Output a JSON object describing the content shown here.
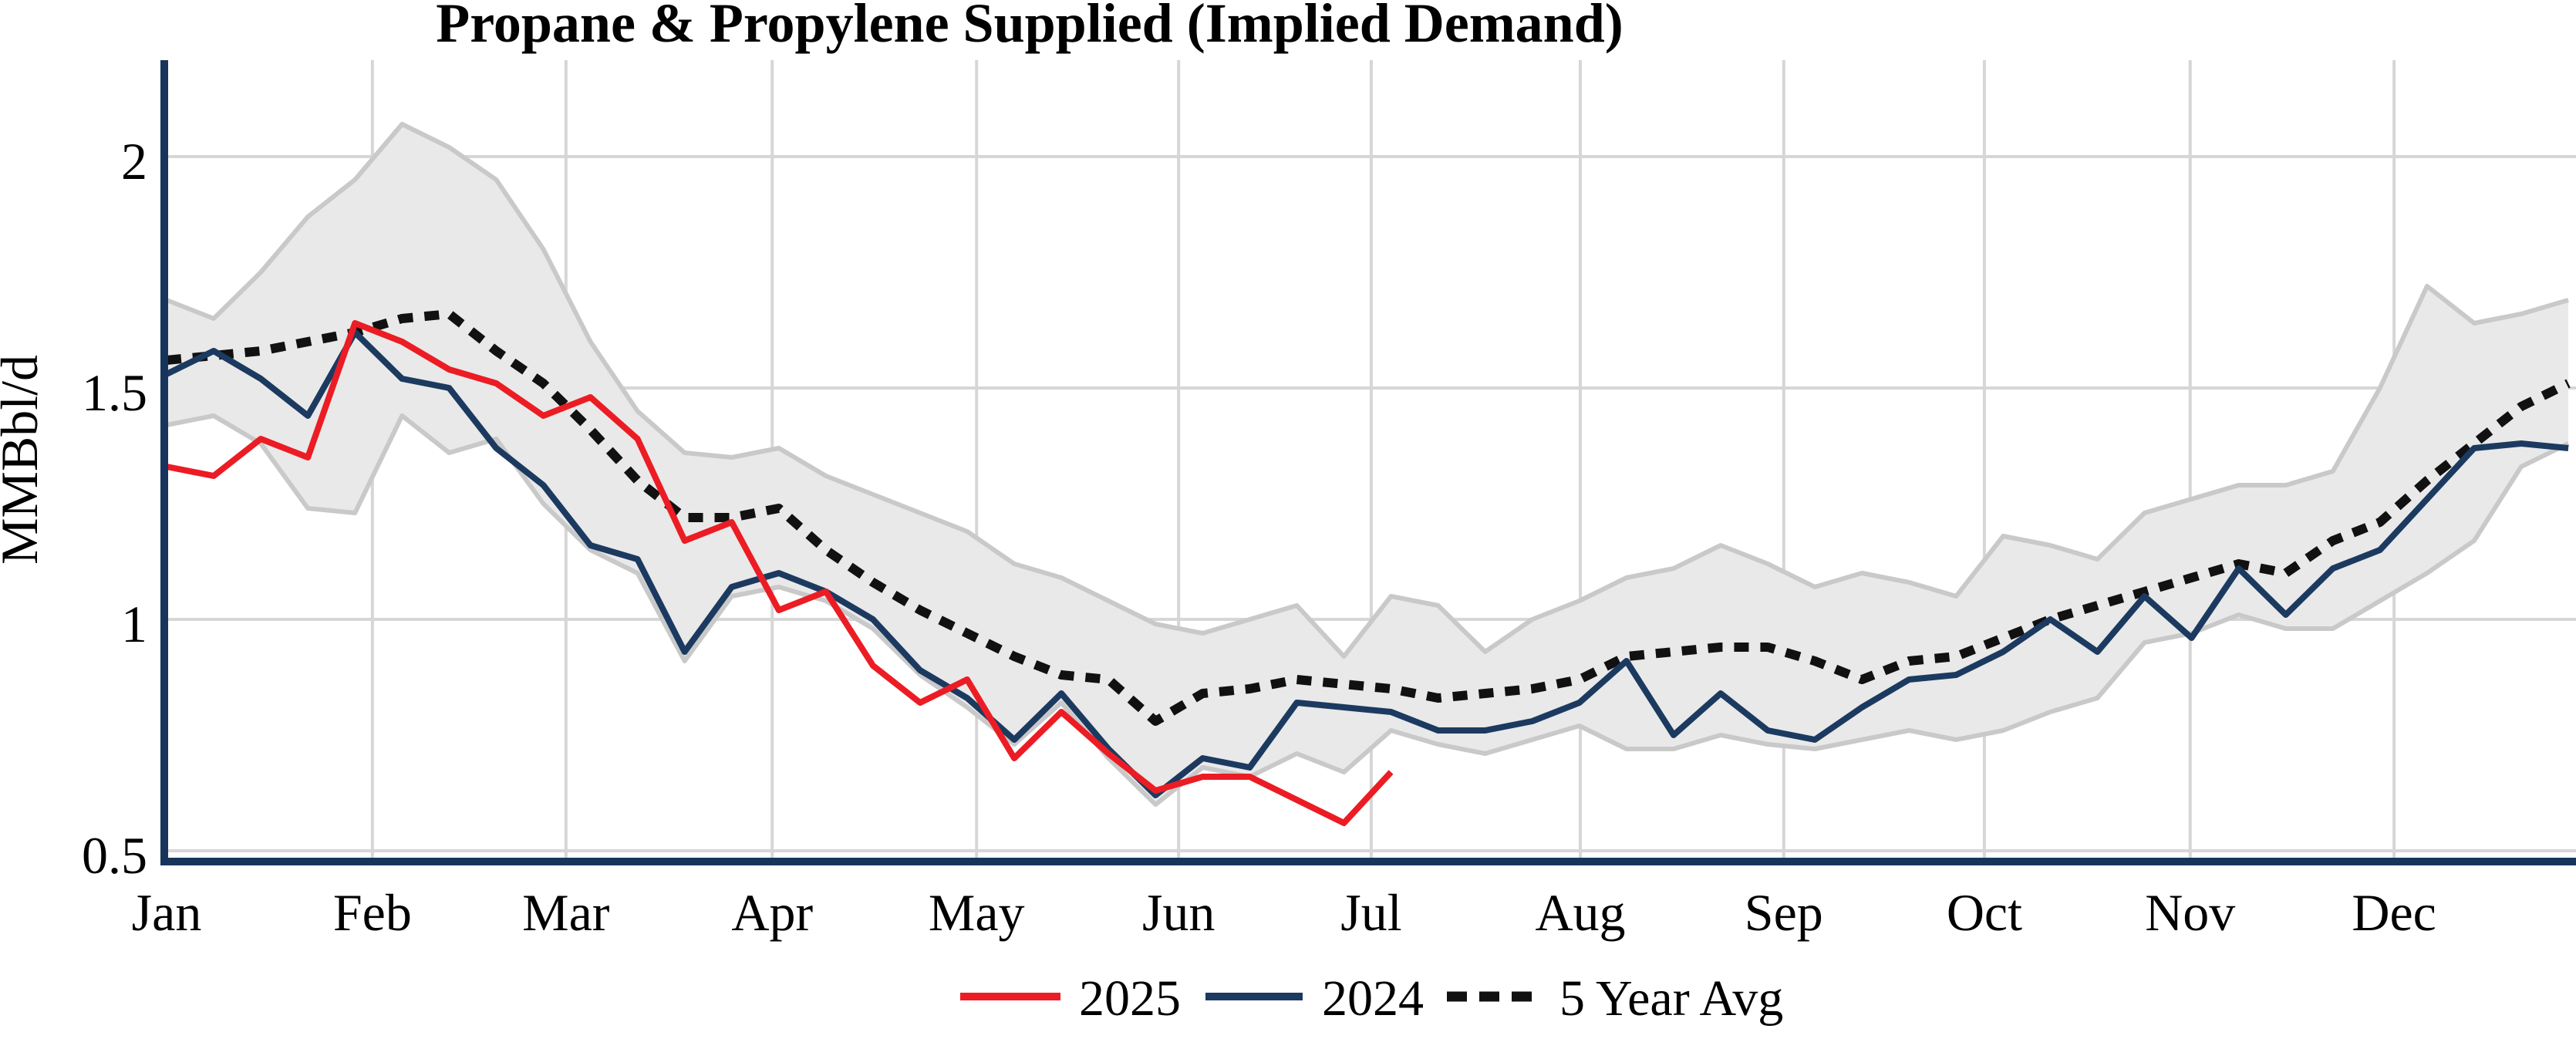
{
  "title": "Propane & Propylene Supplied (Implied Demand)",
  "y_axis": {
    "label": "MMBbl/d",
    "ticks": [
      {
        "value": 2,
        "label": "2"
      },
      {
        "value": 1.5,
        "label": "1.5"
      },
      {
        "value": 1,
        "label": "1"
      },
      {
        "value": 0.5,
        "label": "0.5"
      }
    ]
  },
  "x_axis": {
    "months": [
      "Jan",
      "Feb",
      "Mar",
      "Apr",
      "May",
      "Jun",
      "Jul",
      "Aug",
      "Sep",
      "Oct",
      "Nov",
      "Dec"
    ]
  },
  "legend": [
    {
      "label": "2025",
      "color": "#ec1c24",
      "style": "solid"
    },
    {
      "label": "2024",
      "color": "#1c3a60",
      "style": "solid"
    },
    {
      "label": "5 Year Avg",
      "color": "#111111",
      "style": "dotted"
    }
  ],
  "colors": {
    "red_2025": "#ec1c24",
    "navy_2024": "#1c3a60",
    "avg_dotted": "#111111",
    "band_fill": "#e9e9e9",
    "band_edge": "#c9c9c9",
    "gridline": "#d6d6d6",
    "spine": "#17355c",
    "text": "#000000"
  },
  "chart_data": {
    "type": "line",
    "title": "Propane & Propylene Supplied (Implied Demand)",
    "xlabel": "",
    "ylabel": "MMBbl/d",
    "x_unit": "week_of_year",
    "weeks": 52,
    "ylim": [
      0.5,
      2.17
    ],
    "grid": "on",
    "legend_position": "bottom-center",
    "month_tick_labels": [
      "Jan",
      "Feb",
      "Mar",
      "Apr",
      "May",
      "Jun",
      "Jul",
      "Aug",
      "Sep",
      "Oct",
      "Nov",
      "Dec"
    ],
    "month_week_positions": [
      1,
      5.37,
      9.48,
      13.86,
      18.2,
      22.49,
      26.58,
      31.02,
      35.34,
      39.6,
      43.97,
      48.3
    ],
    "series": [
      {
        "name": "2025",
        "color": "#ec1c24",
        "style": "solid",
        "values": [
          1.33,
          1.31,
          1.39,
          1.35,
          1.64,
          1.6,
          1.54,
          1.51,
          1.44,
          1.48,
          1.39,
          1.17,
          1.21,
          1.02,
          1.06,
          0.9,
          0.82,
          0.87,
          0.7,
          0.8,
          0.71,
          0.63,
          0.66,
          0.66,
          0.61,
          0.56,
          0.67
        ]
      },
      {
        "name": "2024",
        "color": "#1c3a60",
        "style": "solid",
        "values": [
          1.53,
          1.58,
          1.52,
          1.44,
          1.62,
          1.52,
          1.5,
          1.37,
          1.29,
          1.16,
          1.13,
          0.93,
          1.07,
          1.1,
          1.06,
          1.0,
          0.89,
          0.83,
          0.74,
          0.84,
          0.72,
          0.62,
          0.7,
          0.68,
          0.82,
          0.81,
          0.8,
          0.76,
          0.76,
          0.78,
          0.82,
          0.91,
          0.75,
          0.84,
          0.76,
          0.74,
          0.81,
          0.87,
          0.88,
          0.93,
          1.0,
          0.93,
          1.05,
          0.96,
          1.11,
          1.01,
          1.11,
          1.15,
          1.26,
          1.37,
          1.38,
          1.37
        ]
      },
      {
        "name": "5 Year Avg",
        "color": "#111111",
        "style": "dotted",
        "values": [
          1.56,
          1.57,
          1.58,
          1.6,
          1.62,
          1.65,
          1.66,
          1.58,
          1.51,
          1.41,
          1.3,
          1.22,
          1.22,
          1.24,
          1.15,
          1.08,
          1.02,
          0.97,
          0.92,
          0.88,
          0.87,
          0.78,
          0.84,
          0.85,
          0.87,
          0.86,
          0.85,
          0.83,
          0.84,
          0.85,
          0.87,
          0.92,
          0.93,
          0.94,
          0.94,
          0.91,
          0.87,
          0.91,
          0.92,
          0.96,
          1.0,
          1.03,
          1.06,
          1.09,
          1.12,
          1.1,
          1.17,
          1.21,
          1.3,
          1.38,
          1.46,
          1.51
        ]
      }
    ],
    "band": {
      "name": "5 Year Range",
      "fill": "#e9e9e9",
      "edge": "#c9c9c9",
      "min": [
        1.42,
        1.44,
        1.38,
        1.24,
        1.23,
        1.44,
        1.36,
        1.39,
        1.25,
        1.15,
        1.1,
        0.91,
        1.05,
        1.07,
        1.04,
        0.98,
        0.88,
        0.81,
        0.73,
        0.82,
        0.7,
        0.6,
        0.68,
        0.66,
        0.71,
        0.67,
        0.76,
        0.73,
        0.71,
        0.74,
        0.77,
        0.72,
        0.72,
        0.75,
        0.73,
        0.72,
        0.74,
        0.76,
        0.74,
        0.76,
        0.8,
        0.83,
        0.95,
        0.97,
        1.01,
        0.98,
        0.98,
        1.04,
        1.1,
        1.17,
        1.33,
        1.38
      ],
      "max": [
        1.69,
        1.65,
        1.75,
        1.87,
        1.95,
        2.07,
        2.02,
        1.95,
        1.8,
        1.6,
        1.45,
        1.36,
        1.35,
        1.37,
        1.31,
        1.27,
        1.23,
        1.19,
        1.12,
        1.09,
        1.04,
        0.99,
        0.97,
        1.0,
        1.03,
        0.92,
        1.05,
        1.03,
        0.93,
        1.0,
        1.04,
        1.09,
        1.11,
        1.16,
        1.12,
        1.07,
        1.1,
        1.08,
        1.05,
        1.18,
        1.16,
        1.13,
        1.23,
        1.26,
        1.29,
        1.29,
        1.32,
        1.5,
        1.72,
        1.64,
        1.66,
        1.69
      ]
    }
  }
}
